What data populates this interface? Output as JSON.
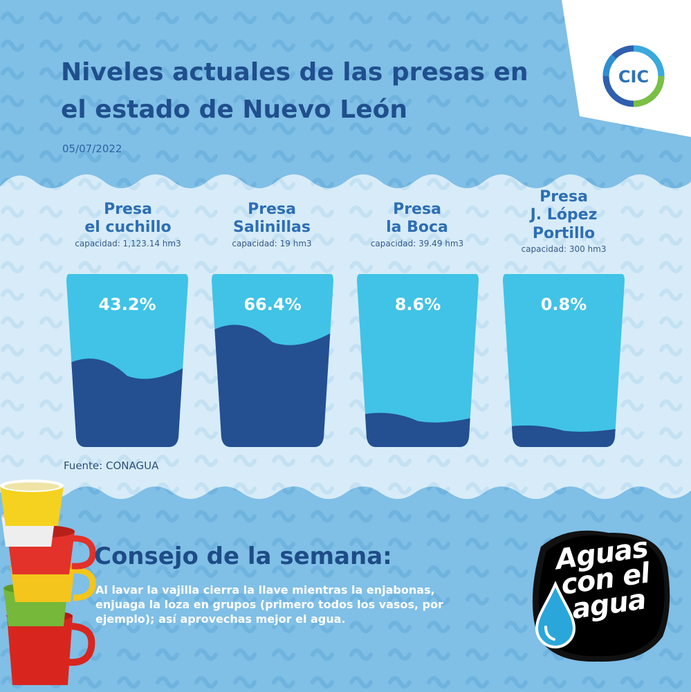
{
  "header": {
    "title": "Niveles actuales de las presas en el estado de Nuevo León",
    "date": "05/07/2022",
    "logo_text": "CIC"
  },
  "colors": {
    "background": "#80bfe6",
    "panel": "#d7ecf8",
    "water_empty": "#40c3e6",
    "water_fill": "#244f91",
    "title": "#1f4f8c"
  },
  "chart_data": {
    "type": "bar",
    "categories": [
      "Presa\nel cuchillo",
      "Presa\nSalinillas",
      "Presa\nla Boca",
      "Presa\nJ. López\nPortillo"
    ],
    "capacities": [
      "capacidad: 1,123.14 hm3",
      "capacidad: 19 hm3",
      "capacidad: 39.49 hm3",
      "capacidad: 300 hm3"
    ],
    "values": [
      43.2,
      66.4,
      8.6,
      0.8
    ],
    "labels": [
      "43.2%",
      "66.4%",
      "8.6%",
      "0.8%"
    ],
    "unit": "%",
    "ylim": [
      0,
      100
    ]
  },
  "source": "Fuente: CONAGUA",
  "tip": {
    "title": "Consejo de la semana:",
    "text": "Al lavar la vajilla cierra la llave mientras la enjabonas, enjuaga la loza en grupos (primero todos los vasos, por ejemplo); así aprovechas mejor el agua."
  },
  "badge": {
    "text": "Aguas\ncon el\nagua"
  },
  "icons": [
    "cic-logo-icon",
    "stacked-cups-icon",
    "water-drop-icon"
  ]
}
